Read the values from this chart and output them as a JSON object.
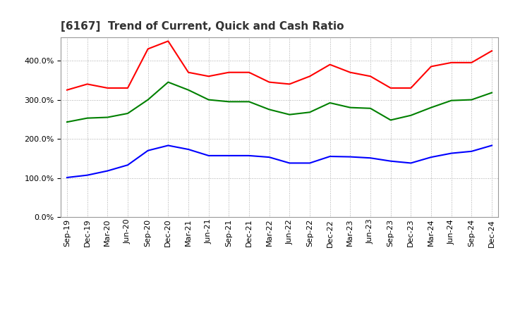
{
  "title": "[6167]  Trend of Current, Quick and Cash Ratio",
  "labels": [
    "Sep-19",
    "Dec-19",
    "Mar-20",
    "Jun-20",
    "Sep-20",
    "Dec-20",
    "Mar-21",
    "Jun-21",
    "Sep-21",
    "Dec-21",
    "Mar-22",
    "Jun-22",
    "Sep-22",
    "Dec-22",
    "Mar-23",
    "Jun-23",
    "Sep-23",
    "Dec-23",
    "Mar-24",
    "Jun-24",
    "Sep-24",
    "Dec-24"
  ],
  "current_ratio": [
    325,
    340,
    330,
    330,
    430,
    450,
    370,
    360,
    370,
    370,
    345,
    340,
    360,
    390,
    370,
    360,
    330,
    330,
    385,
    395,
    395,
    425
  ],
  "quick_ratio": [
    243,
    253,
    255,
    265,
    300,
    345,
    325,
    300,
    295,
    295,
    275,
    262,
    268,
    292,
    280,
    278,
    248,
    260,
    280,
    298,
    300,
    318
  ],
  "cash_ratio": [
    101,
    107,
    118,
    133,
    170,
    183,
    173,
    157,
    157,
    157,
    153,
    138,
    138,
    155,
    154,
    151,
    143,
    138,
    153,
    163,
    168,
    183
  ],
  "current_color": "#FF0000",
  "quick_color": "#008000",
  "cash_color": "#0000FF",
  "ylim": [
    0,
    460
  ],
  "yticks": [
    0,
    100,
    200,
    300,
    400
  ],
  "bg_color": "#FFFFFF",
  "grid_color": "#AAAAAA",
  "line_width": 1.5,
  "title_fontsize": 11,
  "tick_fontsize": 8,
  "legend_fontsize": 9
}
